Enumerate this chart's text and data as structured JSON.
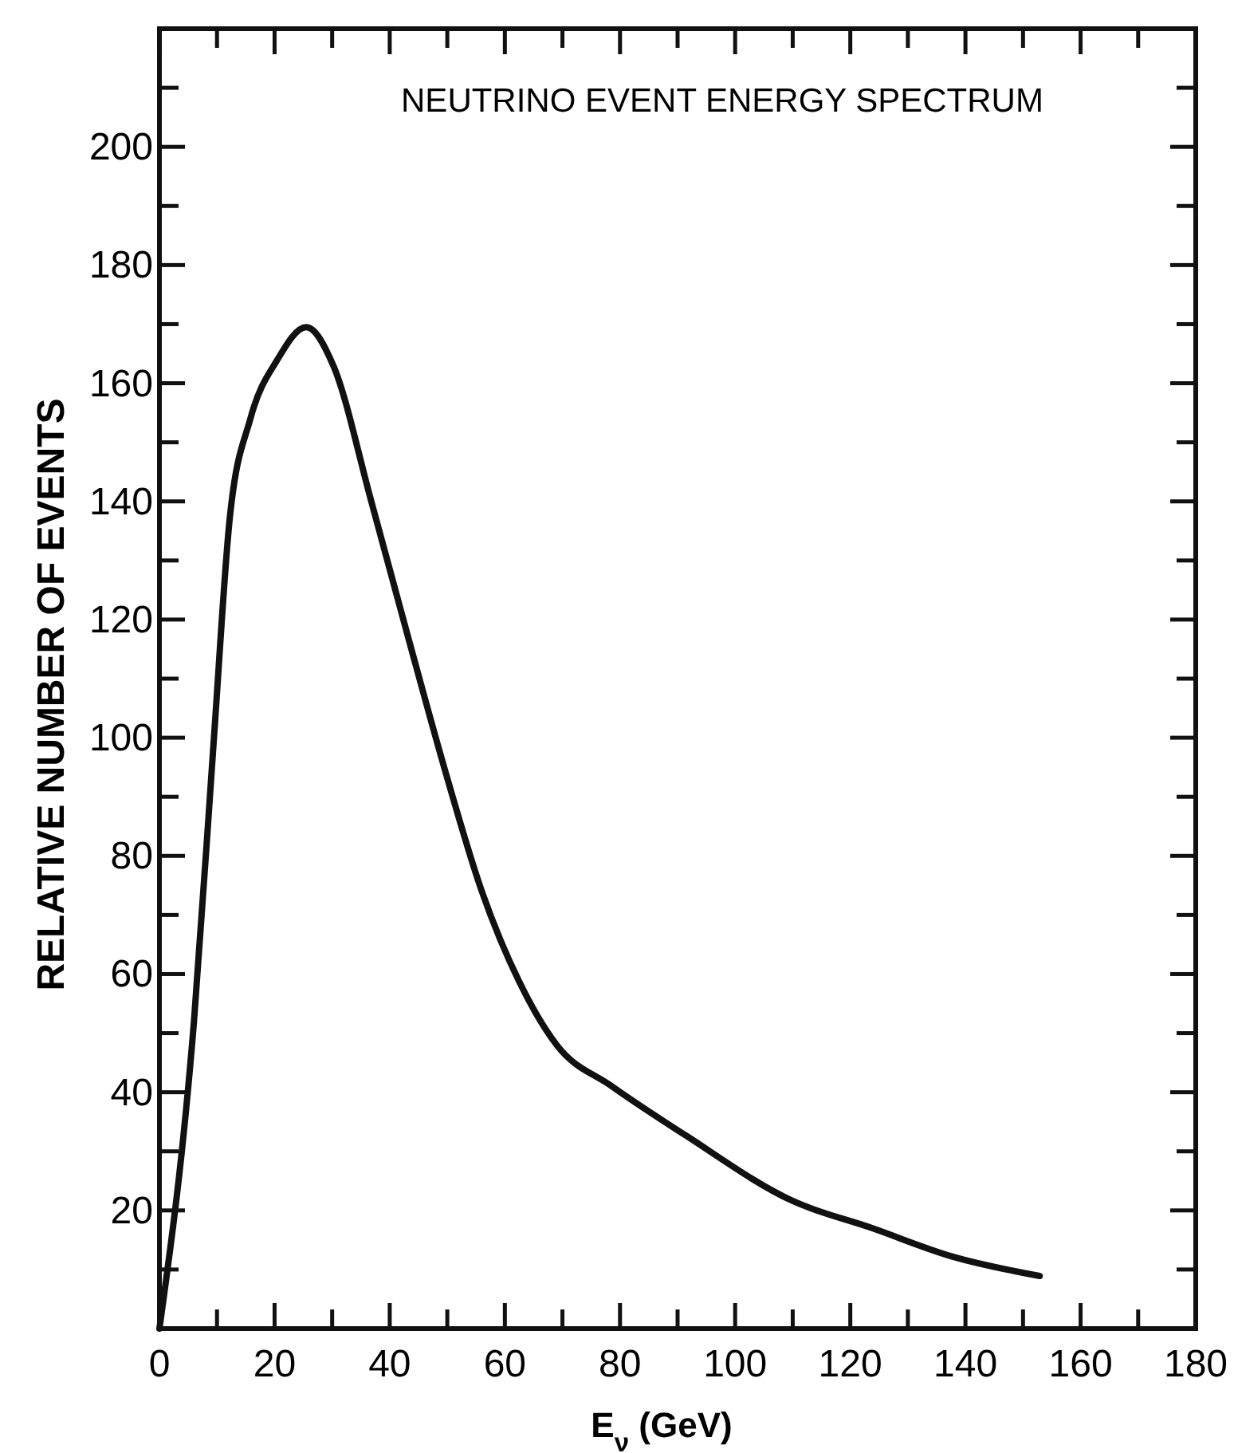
{
  "chart_data": {
    "type": "line",
    "title": "NEUTRINO EVENT ENERGY SPECTRUM",
    "xlabel": "E$_{ν}$ (GeV)",
    "ylabel": "RELATIVE NUMBER OF EVENTS",
    "x": [
      0,
      6,
      9.4,
      12.2,
      15.8,
      20.5,
      25.5,
      30.2,
      36.8,
      43.2,
      49.6,
      56,
      62.6,
      69,
      78.6,
      91.4,
      110,
      123.8,
      137.7,
      152.9
    ],
    "series": [
      {
        "color": "#111111",
        "values": [
          0,
          52,
          99,
          137,
          154,
          164,
          169.5,
          163,
          140,
          117,
          94.5,
          74,
          58.5,
          48,
          41,
          32.7,
          21.6,
          17,
          12.2,
          8.9
        ]
      }
    ],
    "xlim": [
      0,
      180
    ],
    "ylim": [
      0,
      220
    ],
    "xticks": [
      0,
      {
        "value": 10,
        "label": null
      },
      20,
      {
        "value": 30,
        "label": null
      },
      40,
      {
        "value": 50,
        "label": null
      },
      60,
      {
        "value": 70,
        "label": null
      },
      80,
      {
        "value": 90,
        "label": null
      },
      100,
      {
        "value": 110,
        "label": null
      },
      120,
      {
        "value": 130,
        "label": null
      },
      140,
      {
        "value": 150,
        "label": null
      },
      160,
      {
        "value": 170,
        "label": null
      },
      180
    ],
    "yticks": [
      {
        "value": 10,
        "label": null
      },
      20,
      {
        "value": 30,
        "label": null
      },
      40,
      {
        "value": 50,
        "label": null
      },
      60,
      {
        "value": 70,
        "label": null
      },
      80,
      {
        "value": 90,
        "label": null
      },
      100,
      {
        "value": 110,
        "label": null
      },
      120,
      {
        "value": 130,
        "label": null
      },
      140,
      {
        "value": 150,
        "label": null
      },
      160,
      {
        "value": 170,
        "label": null
      },
      180,
      {
        "value": 190,
        "label": null
      },
      200,
      {
        "value": 210,
        "label": null
      }
    ],
    "grid": false,
    "marker": "none",
    "line_style": "solid"
  }
}
